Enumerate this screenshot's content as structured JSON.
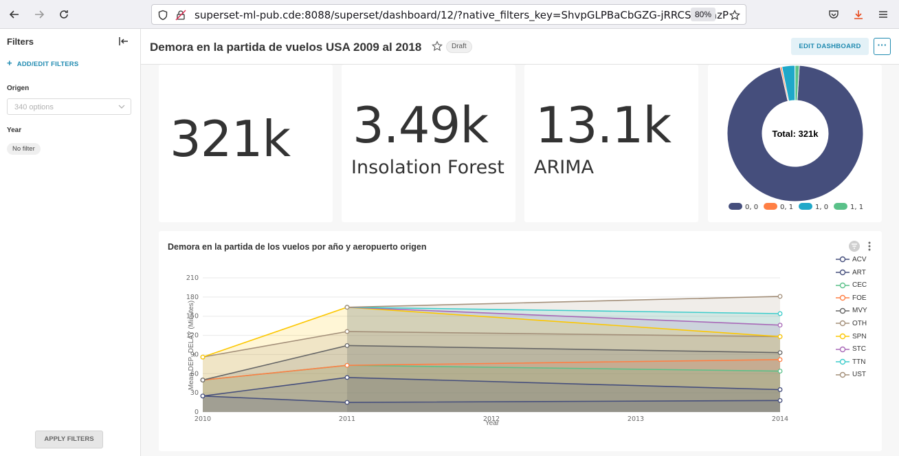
{
  "browser": {
    "url": "superset-ml-pub.cde:8088/superset/dashboard/12/?native_filters_key=ShvpGLPBaCbGZG-jRRCSyYXazP",
    "zoom": "80%"
  },
  "sidebar": {
    "title": "Filters",
    "add_filters": "ADD/EDIT FILTERS",
    "filters": [
      {
        "label": "Origen",
        "placeholder": "340 options"
      },
      {
        "label": "Year",
        "chip": "No filter"
      }
    ],
    "apply": "APPLY FILTERS"
  },
  "header": {
    "title": "Demora en la partida de vuelos USA 2009 al 2018",
    "badge": "Draft",
    "edit": "EDIT DASHBOARD",
    "more": "···"
  },
  "kpis": [
    {
      "value": "321k",
      "subtitle": ""
    },
    {
      "value": "3.49k",
      "subtitle": "Insolation Forest"
    },
    {
      "value": "13.1k",
      "subtitle": "ARIMA"
    }
  ],
  "donut": {
    "center": "Total: 321k",
    "slices": [
      {
        "label": "0, 0",
        "value": 0.955,
        "color": "#454e7c"
      },
      {
        "label": "0, 1",
        "value": 0.004,
        "color": "#ff7f44"
      },
      {
        "label": "1, 0",
        "value": 0.031,
        "color": "#1fa8c9"
      },
      {
        "label": "1, 1",
        "value": 0.01,
        "color": "#5ac189"
      }
    ]
  },
  "chart_data": {
    "type": "area",
    "title": "Demora en la partida de los vuelos por año y aeropuerto origen",
    "xlabel": "Year",
    "ylabel": "Mean DEP_DELAY (Minutes)",
    "x": [
      2010,
      2011,
      2012,
      2013,
      2014
    ],
    "ylim": [
      0,
      210
    ],
    "yticks": [
      0,
      30,
      60,
      90,
      120,
      150,
      180,
      210
    ],
    "grid": true,
    "legend": "right",
    "series": [
      {
        "name": "ACV",
        "color": "#454e7c",
        "points": [
          [
            2010,
            25
          ],
          [
            2011,
            15
          ],
          [
            2014,
            18
          ]
        ]
      },
      {
        "name": "ART",
        "color": "#454e7c",
        "points": [
          [
            2010,
            25
          ],
          [
            2011,
            54
          ],
          [
            2014,
            35
          ]
        ]
      },
      {
        "name": "CEC",
        "color": "#5ac189",
        "points": [
          [
            2010,
            50
          ],
          [
            2011,
            73
          ],
          [
            2014,
            64
          ]
        ]
      },
      {
        "name": "FOE",
        "color": "#ff7f44",
        "points": [
          [
            2010,
            50
          ],
          [
            2011,
            73
          ],
          [
            2014,
            82
          ]
        ]
      },
      {
        "name": "MVY",
        "color": "#666666",
        "points": [
          [
            2010,
            50
          ],
          [
            2011,
            104
          ],
          [
            2014,
            93
          ]
        ]
      },
      {
        "name": "OTH",
        "color": "#a38f79",
        "points": [
          [
            2010,
            86
          ],
          [
            2011,
            126
          ],
          [
            2014,
            118
          ]
        ]
      },
      {
        "name": "SPN",
        "color": "#fcc700",
        "points": [
          [
            2010,
            86
          ],
          [
            2011,
            164
          ],
          [
            2014,
            118
          ]
        ]
      },
      {
        "name": "STC",
        "color": "#a868b7",
        "points": [
          [
            2011,
            164
          ],
          [
            2014,
            136
          ]
        ]
      },
      {
        "name": "TTN",
        "color": "#3ccccb",
        "points": [
          [
            2011,
            164
          ],
          [
            2014,
            154
          ]
        ]
      },
      {
        "name": "UST",
        "color": "#a38f79",
        "points": [
          [
            2011,
            164
          ],
          [
            2014,
            181
          ]
        ]
      }
    ]
  }
}
